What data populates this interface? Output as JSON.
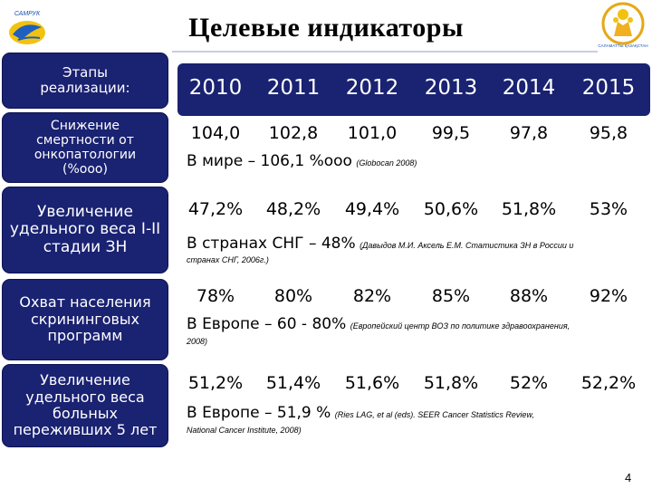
{
  "title": "Целевые индикаторы",
  "logo_left_text": "САМРУК",
  "logo_right_text": "САЛАМАТТЫ ҚАЗАҚСТАН",
  "stage_label": "Этапы\nреализации:",
  "years": [
    "2010",
    "2011",
    "2012",
    "2013",
    "2014",
    "2015"
  ],
  "rows": [
    {
      "label": "Снижение\nсмертности от\nонкопатологии\n(%ооо)",
      "values": [
        "104,0",
        "102,8",
        "101,0",
        "99,5",
        "97,8",
        "95,8"
      ],
      "reference": "В мире – 106,1 %ооо",
      "source": "(Globocan 2008)",
      "source_cont": ""
    },
    {
      "label": "Увеличение\nудельного веса I-II\nстадии ЗН",
      "values": [
        "47,2%",
        "48,2%",
        "49,4%",
        "50,6%",
        "51,8%",
        "53%"
      ],
      "reference": "В странах СНГ – 48%",
      "source": "(Давыдов М.И. Аксель Е.М. Статистика ЗН в России и",
      "source_cont": "странах СНГ, 2006г.)"
    },
    {
      "label": "Охват населения\nскрининговых\nпрограмм",
      "values": [
        "78%",
        "80%",
        "82%",
        "85%",
        "88%",
        "92%"
      ],
      "reference": "В Европе – 60 - 80%",
      "source": "(Европейский центр ВОЗ по политике здравоохранения,",
      "source_cont": "2008)"
    },
    {
      "label": "Увеличение\nудельного веса\nбольных\nпереживших 5 лет",
      "values": [
        "51,2%",
        "51,4%",
        "51,6%",
        "51,8%",
        "52%",
        "52,2%"
      ],
      "reference": "В Европе – 51,9 %",
      "source": "(Ries LAG, et al (eds). SEER Cancer Statistics Review,",
      "source_cont": "National Cancer Institute, 2008)"
    }
  ],
  "page_number": "4",
  "colors": {
    "box": "#1a2272",
    "box_text": "#ffffff"
  }
}
